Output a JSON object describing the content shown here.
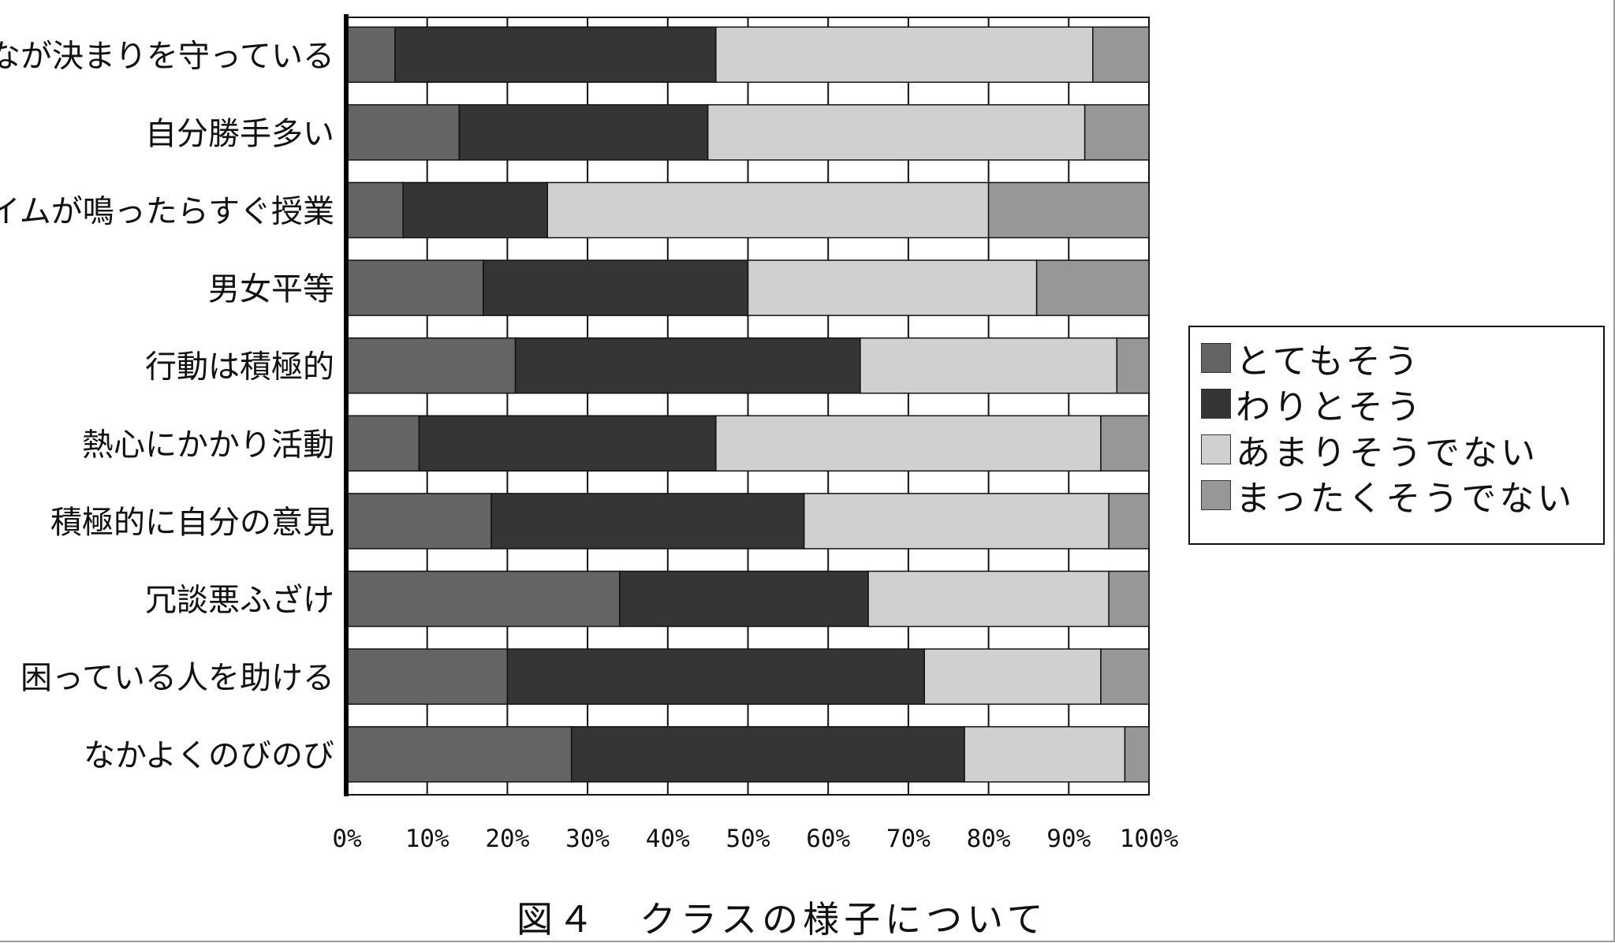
{
  "chart_data": {
    "type": "bar",
    "orientation": "horizontal",
    "stacked": true,
    "percent": true,
    "categories": [
      "みんなが決まりを守っている",
      "自分勝手多い",
      "チャイムが鳴ったらすぐ授業",
      "男女平等",
      "行動は積極的",
      "熱心にかかり活動",
      "積極的に自分の意見",
      "冗談悪ふざけ",
      "困っている人を助ける",
      "なかよくのびのび"
    ],
    "series": [
      {
        "name": "とてもそう",
        "color": "#646464",
        "values": [
          6,
          14,
          7,
          17,
          21,
          9,
          18,
          34,
          20,
          28
        ]
      },
      {
        "name": "わりとそう",
        "color": "#353535",
        "values": [
          40,
          31,
          18,
          33,
          43,
          37,
          39,
          31,
          52,
          49
        ]
      },
      {
        "name": "あまりそうでない",
        "color": "#d0d0d0",
        "values": [
          47,
          47,
          55,
          36,
          32,
          48,
          38,
          30,
          22,
          20
        ]
      },
      {
        "name": "まったくそうでない",
        "color": "#979797",
        "values": [
          7,
          8,
          20,
          14,
          4,
          6,
          5,
          5,
          6,
          3
        ]
      }
    ],
    "x_ticks": [
      "0%",
      "10%",
      "20%",
      "30%",
      "40%",
      "50%",
      "60%",
      "70%",
      "80%",
      "90%",
      "100%"
    ],
    "xlim": [
      0,
      100
    ],
    "grid": "vertical-every-10%",
    "legend_position": "right",
    "caption": "図４　クラスの様子について"
  }
}
